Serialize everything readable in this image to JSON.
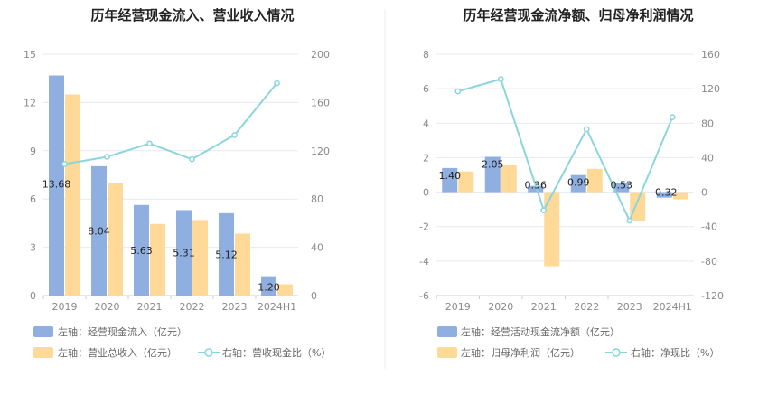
{
  "colors": {
    "bar_blue": "#8eafdf",
    "bar_orange": "#ffd998",
    "line_cyan": "#8ad6dc",
    "grid": "#e6e9f2",
    "divider": "#eeeeee"
  },
  "chart_data": [
    {
      "type": "bar",
      "title": "历年经营现金流入、营业收入情况",
      "categories": [
        "2019",
        "2020",
        "2021",
        "2022",
        "2023",
        "2024H1"
      ],
      "left_axis": {
        "ylim": [
          0,
          15
        ],
        "ticks": [
          "0",
          "3",
          "6",
          "9",
          "12",
          "15"
        ]
      },
      "right_axis": {
        "ylim": [
          0,
          200
        ],
        "ticks": [
          "0",
          "40",
          "80",
          "120",
          "160",
          "200"
        ]
      },
      "series": [
        {
          "name": "左轴：经营现金流入（亿元）",
          "axis": "left",
          "kind": "bar",
          "color": "#8eafdf",
          "values": [
            13.68,
            8.04,
            5.63,
            5.31,
            5.12,
            1.2
          ],
          "labels": [
            "13.68",
            "8.04",
            "5.63",
            "5.31",
            "5.12",
            "1.20"
          ]
        },
        {
          "name": "左轴：营业总收入（亿元）",
          "axis": "left",
          "kind": "bar",
          "color": "#ffd998",
          "values": [
            12.5,
            7.0,
            4.45,
            4.7,
            3.85,
            0.7
          ]
        },
        {
          "name": "右轴：营收现金比（%）",
          "axis": "right",
          "kind": "line",
          "color": "#8ad6dc",
          "values": [
            109,
            115,
            126,
            113,
            133,
            176
          ]
        }
      ],
      "legend_position": "bottom"
    },
    {
      "type": "bar",
      "title": "历年经营现金流净额、归母净利润情况",
      "categories": [
        "2019",
        "2020",
        "2021",
        "2022",
        "2023",
        "2024H1"
      ],
      "left_axis": {
        "ylim": [
          -6,
          8
        ],
        "ticks": [
          "-6",
          "-4",
          "-2",
          "0",
          "2",
          "4",
          "6",
          "8"
        ]
      },
      "right_axis": {
        "ylim": [
          -120,
          160
        ],
        "ticks": [
          "-120",
          "-80",
          "-40",
          "0",
          "40",
          "80",
          "120",
          "160"
        ]
      },
      "series": [
        {
          "name": "左轴：经营活动现金流净额（亿元）",
          "axis": "left",
          "kind": "bar",
          "color": "#8eafdf",
          "values": [
            1.4,
            2.05,
            0.36,
            0.99,
            0.53,
            -0.32
          ],
          "labels": [
            "1.40",
            "2.05",
            "0.36",
            "0.99",
            "0.53",
            "-0.32"
          ]
        },
        {
          "name": "左轴：归母净利润（亿元）",
          "axis": "left",
          "kind": "bar",
          "color": "#ffd998",
          "values": [
            1.2,
            1.55,
            -4.3,
            1.35,
            -1.7,
            -0.42
          ]
        },
        {
          "name": "右轴：净现比（%）",
          "axis": "right",
          "kind": "line",
          "color": "#8ad6dc",
          "values": [
            117,
            131,
            -21,
            73,
            -33,
            87
          ]
        }
      ],
      "legend_position": "bottom"
    }
  ]
}
